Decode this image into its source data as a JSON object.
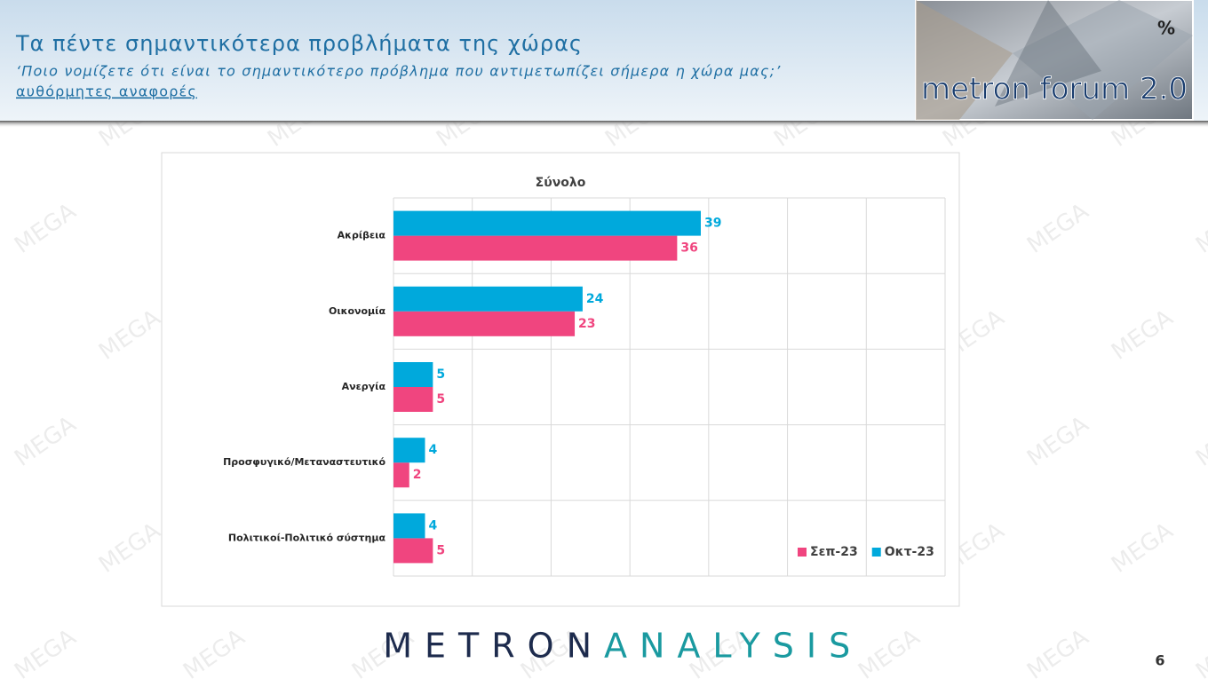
{
  "header": {
    "title": "Τα πέντε σημαντικότερα προβλήματα της χώρας",
    "subtitle": "‘Ποιο νομίζετε ότι είναι το σημαντικότερο πρόβλημα που αντιμετωπίζει σήμερα η χώρα μας;’",
    "note": "αυθόρμητες αναφορές"
  },
  "logo": {
    "text": "metron forum 2.0",
    "symbol": "%"
  },
  "watermark": "MEGA",
  "footer": {
    "brand_left": "METRON",
    "brand_right": "ANALYSIS"
  },
  "page_number": 6,
  "chart_data": {
    "type": "hbar",
    "title": "Σύνολο",
    "categories": [
      "Ακρίβεια",
      "Οικονομία",
      "Ανεργία",
      "Προσφυγικό/Μεταναστευτικό",
      "Πολιτικοί-Πολιτικό σύστημα"
    ],
    "series": [
      {
        "name": "Σεπ-23",
        "color": "#f0457f",
        "values": [
          36,
          23,
          5,
          2,
          5
        ]
      },
      {
        "name": "Οκτ-23",
        "color": "#00a9dc",
        "values": [
          39,
          24,
          5,
          4,
          4
        ]
      }
    ],
    "xlim": [
      0,
      70
    ],
    "xticks": [
      0,
      10,
      20,
      30,
      40,
      50,
      60,
      70
    ],
    "grid": true,
    "legend": "bottom-right"
  }
}
